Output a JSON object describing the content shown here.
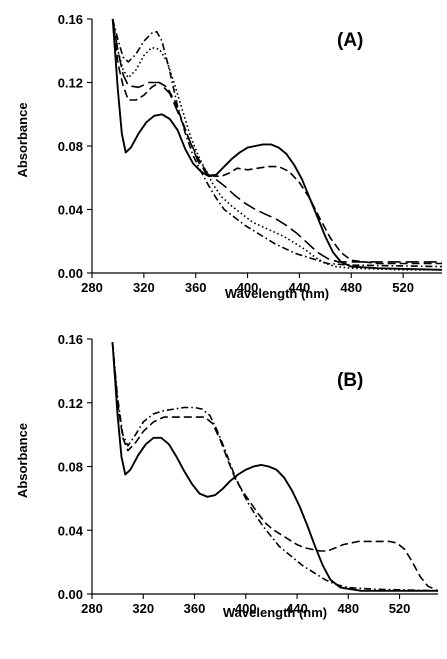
{
  "chart_data": [
    {
      "type": "line",
      "panel_label": "(A)",
      "xlabel": "Wavelength (nm)",
      "ylabel": "Absorbance",
      "xlim": [
        280,
        550
      ],
      "ylim": [
        0,
        0.16
      ],
      "xticks": [
        "280",
        "320",
        "360",
        "400",
        "440",
        "480",
        "520"
      ],
      "yticks": [
        "0.00",
        "0.04",
        "0.08",
        "0.12",
        "0.16"
      ],
      "grid": false,
      "legend": "none",
      "series": [
        {
          "style": "solid",
          "points": [
            [
              296,
              0.16
            ],
            [
              300,
              0.115
            ],
            [
              303,
              0.088
            ],
            [
              306,
              0.076
            ],
            [
              310,
              0.079
            ],
            [
              316,
              0.088
            ],
            [
              322,
              0.095
            ],
            [
              328,
              0.099
            ],
            [
              334,
              0.1
            ],
            [
              340,
              0.097
            ],
            [
              346,
              0.09
            ],
            [
              352,
              0.078
            ],
            [
              358,
              0.069
            ],
            [
              364,
              0.064
            ],
            [
              370,
              0.061
            ],
            [
              376,
              0.062
            ],
            [
              382,
              0.067
            ],
            [
              388,
              0.072
            ],
            [
              394,
              0.076
            ],
            [
              400,
              0.079
            ],
            [
              406,
              0.08
            ],
            [
              412,
              0.081
            ],
            [
              418,
              0.081
            ],
            [
              424,
              0.079
            ],
            [
              430,
              0.075
            ],
            [
              436,
              0.068
            ],
            [
              442,
              0.059
            ],
            [
              448,
              0.047
            ],
            [
              454,
              0.035
            ],
            [
              460,
              0.023
            ],
            [
              466,
              0.013
            ],
            [
              472,
              0.007
            ],
            [
              480,
              0.004
            ],
            [
              500,
              0.003
            ],
            [
              550,
              0.002
            ]
          ]
        },
        {
          "style": "dashed",
          "points": [
            [
              296,
              0.16
            ],
            [
              300,
              0.132
            ],
            [
              304,
              0.118
            ],
            [
              308,
              0.109
            ],
            [
              314,
              0.109
            ],
            [
              320,
              0.112
            ],
            [
              326,
              0.117
            ],
            [
              332,
              0.12
            ],
            [
              338,
              0.117
            ],
            [
              344,
              0.108
            ],
            [
              350,
              0.095
            ],
            [
              356,
              0.082
            ],
            [
              362,
              0.072
            ],
            [
              368,
              0.064
            ],
            [
              374,
              0.061
            ],
            [
              380,
              0.061
            ],
            [
              386,
              0.063
            ],
            [
              392,
              0.066
            ],
            [
              400,
              0.065
            ],
            [
              408,
              0.066
            ],
            [
              416,
              0.067
            ],
            [
              424,
              0.067
            ],
            [
              432,
              0.064
            ],
            [
              440,
              0.057
            ],
            [
              448,
              0.047
            ],
            [
              456,
              0.034
            ],
            [
              464,
              0.022
            ],
            [
              472,
              0.013
            ],
            [
              480,
              0.008
            ],
            [
              500,
              0.006
            ],
            [
              550,
              0.006
            ]
          ]
        },
        {
          "style": "dotted",
          "points": [
            [
              296,
              0.16
            ],
            [
              300,
              0.14
            ],
            [
              304,
              0.128
            ],
            [
              308,
              0.123
            ],
            [
              314,
              0.128
            ],
            [
              320,
              0.137
            ],
            [
              326,
              0.142
            ],
            [
              332,
              0.141
            ],
            [
              338,
              0.133
            ],
            [
              344,
              0.118
            ],
            [
              350,
              0.102
            ],
            [
              356,
              0.086
            ],
            [
              362,
              0.074
            ],
            [
              368,
              0.064
            ],
            [
              374,
              0.055
            ],
            [
              380,
              0.048
            ],
            [
              388,
              0.042
            ],
            [
              396,
              0.037
            ],
            [
              404,
              0.032
            ],
            [
              412,
              0.029
            ],
            [
              420,
              0.026
            ],
            [
              428,
              0.023
            ],
            [
              436,
              0.019
            ],
            [
              444,
              0.015
            ],
            [
              452,
              0.01
            ],
            [
              460,
              0.006
            ],
            [
              468,
              0.004
            ],
            [
              480,
              0.003
            ],
            [
              520,
              0.002
            ],
            [
              550,
              0.002
            ]
          ]
        },
        {
          "style": "dash-dot",
          "points": [
            [
              296,
              0.16
            ],
            [
              300,
              0.147
            ],
            [
              304,
              0.136
            ],
            [
              308,
              0.133
            ],
            [
              314,
              0.138
            ],
            [
              320,
              0.146
            ],
            [
              326,
              0.151
            ],
            [
              330,
              0.152
            ],
            [
              334,
              0.146
            ],
            [
              340,
              0.127
            ],
            [
              346,
              0.105
            ],
            [
              352,
              0.088
            ],
            [
              358,
              0.074
            ],
            [
              364,
              0.064
            ],
            [
              370,
              0.055
            ],
            [
              376,
              0.047
            ],
            [
              382,
              0.04
            ],
            [
              390,
              0.035
            ],
            [
              398,
              0.03
            ],
            [
              406,
              0.026
            ],
            [
              414,
              0.022
            ],
            [
              422,
              0.018
            ],
            [
              430,
              0.015
            ],
            [
              438,
              0.012
            ],
            [
              446,
              0.01
            ],
            [
              454,
              0.008
            ],
            [
              462,
              0.006
            ],
            [
              480,
              0.005
            ],
            [
              550,
              0.004
            ]
          ]
        },
        {
          "style": "long-dash",
          "points": [
            [
              296,
              0.16
            ],
            [
              300,
              0.14
            ],
            [
              304,
              0.125
            ],
            [
              308,
              0.118
            ],
            [
              316,
              0.117
            ],
            [
              324,
              0.12
            ],
            [
              332,
              0.12
            ],
            [
              340,
              0.113
            ],
            [
              348,
              0.098
            ],
            [
              356,
              0.082
            ],
            [
              362,
              0.07
            ],
            [
              368,
              0.063
            ],
            [
              374,
              0.06
            ],
            [
              382,
              0.055
            ],
            [
              390,
              0.049
            ],
            [
              398,
              0.044
            ],
            [
              406,
              0.04
            ],
            [
              414,
              0.037
            ],
            [
              422,
              0.034
            ],
            [
              430,
              0.03
            ],
            [
              438,
              0.025
            ],
            [
              446,
              0.019
            ],
            [
              454,
              0.013
            ],
            [
              462,
              0.009
            ],
            [
              470,
              0.007
            ],
            [
              480,
              0.007
            ],
            [
              550,
              0.007
            ]
          ]
        }
      ]
    },
    {
      "type": "line",
      "panel_label": "(B)",
      "xlabel": "Wavelength (nm)",
      "ylabel": "Absorbance",
      "xlim": [
        280,
        550
      ],
      "ylim": [
        0,
        0.16
      ],
      "xticks": [
        "280",
        "320",
        "360",
        "400",
        "440",
        "480",
        "520"
      ],
      "yticks": [
        "0.00",
        "0.04",
        "0.08",
        "0.12",
        "0.16"
      ],
      "grid": false,
      "legend": "none",
      "series": [
        {
          "style": "solid",
          "points": [
            [
              296,
              0.158
            ],
            [
              300,
              0.112
            ],
            [
              303,
              0.086
            ],
            [
              306,
              0.075
            ],
            [
              310,
              0.078
            ],
            [
              316,
              0.087
            ],
            [
              322,
              0.094
            ],
            [
              328,
              0.098
            ],
            [
              334,
              0.098
            ],
            [
              340,
              0.094
            ],
            [
              346,
              0.086
            ],
            [
              352,
              0.077
            ],
            [
              358,
              0.069
            ],
            [
              364,
              0.063
            ],
            [
              370,
              0.061
            ],
            [
              376,
              0.062
            ],
            [
              382,
              0.066
            ],
            [
              388,
              0.071
            ],
            [
              394,
              0.075
            ],
            [
              400,
              0.078
            ],
            [
              406,
              0.08
            ],
            [
              412,
              0.081
            ],
            [
              418,
              0.08
            ],
            [
              424,
              0.078
            ],
            [
              430,
              0.073
            ],
            [
              436,
              0.065
            ],
            [
              442,
              0.055
            ],
            [
              448,
              0.043
            ],
            [
              454,
              0.03
            ],
            [
              460,
              0.018
            ],
            [
              466,
              0.009
            ],
            [
              474,
              0.004
            ],
            [
              490,
              0.002
            ],
            [
              550,
              0.002
            ]
          ]
        },
        {
          "style": "dashed",
          "points": [
            [
              296,
              0.158
            ],
            [
              300,
              0.12
            ],
            [
              304,
              0.098
            ],
            [
              308,
              0.09
            ],
            [
              314,
              0.095
            ],
            [
              320,
              0.102
            ],
            [
              328,
              0.108
            ],
            [
              336,
              0.111
            ],
            [
              344,
              0.111
            ],
            [
              352,
              0.111
            ],
            [
              360,
              0.111
            ],
            [
              368,
              0.111
            ],
            [
              374,
              0.107
            ],
            [
              380,
              0.097
            ],
            [
              386,
              0.084
            ],
            [
              392,
              0.072
            ],
            [
              398,
              0.064
            ],
            [
              404,
              0.057
            ],
            [
              410,
              0.05
            ],
            [
              416,
              0.044
            ],
            [
              422,
              0.04
            ],
            [
              428,
              0.037
            ],
            [
              434,
              0.034
            ],
            [
              440,
              0.031
            ],
            [
              446,
              0.029
            ],
            [
              452,
              0.028
            ],
            [
              458,
              0.027
            ],
            [
              464,
              0.027
            ],
            [
              470,
              0.029
            ],
            [
              476,
              0.031
            ],
            [
              482,
              0.032
            ],
            [
              488,
              0.033
            ],
            [
              496,
              0.033
            ],
            [
              504,
              0.033
            ],
            [
              512,
              0.033
            ],
            [
              518,
              0.032
            ],
            [
              524,
              0.028
            ],
            [
              530,
              0.02
            ],
            [
              536,
              0.011
            ],
            [
              542,
              0.005
            ],
            [
              550,
              0.002
            ]
          ]
        },
        {
          "style": "dash-dot",
          "points": [
            [
              296,
              0.158
            ],
            [
              300,
              0.123
            ],
            [
              304,
              0.1
            ],
            [
              308,
              0.093
            ],
            [
              314,
              0.1
            ],
            [
              320,
              0.108
            ],
            [
              328,
              0.113
            ],
            [
              336,
              0.115
            ],
            [
              344,
              0.116
            ],
            [
              352,
              0.117
            ],
            [
              360,
              0.117
            ],
            [
              366,
              0.116
            ],
            [
              372,
              0.112
            ],
            [
              378,
              0.102
            ],
            [
              384,
              0.09
            ],
            [
              390,
              0.077
            ],
            [
              396,
              0.066
            ],
            [
              402,
              0.057
            ],
            [
              408,
              0.049
            ],
            [
              414,
              0.042
            ],
            [
              420,
              0.036
            ],
            [
              426,
              0.03
            ],
            [
              432,
              0.026
            ],
            [
              438,
              0.022
            ],
            [
              444,
              0.018
            ],
            [
              450,
              0.015
            ],
            [
              456,
              0.012
            ],
            [
              462,
              0.009
            ],
            [
              470,
              0.006
            ],
            [
              480,
              0.004
            ],
            [
              500,
              0.003
            ],
            [
              550,
              0.002
            ]
          ]
        }
      ]
    }
  ]
}
